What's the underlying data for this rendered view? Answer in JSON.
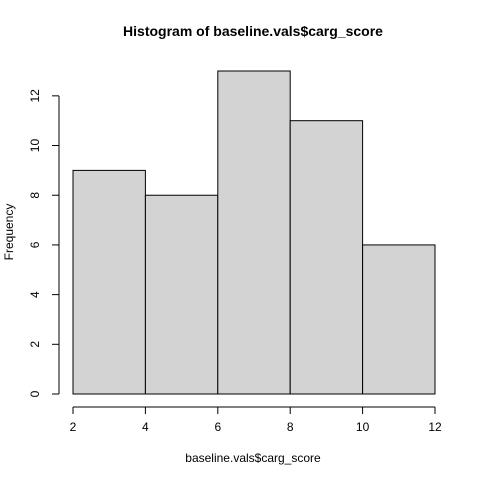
{
  "chart_data": {
    "type": "bar",
    "title": "Histogram of baseline.vals$carg_score",
    "xlabel": "baseline.vals$carg_score",
    "ylabel": "Frequency",
    "bins": [
      {
        "x0": 2,
        "x1": 4,
        "count": 9
      },
      {
        "x0": 4,
        "x1": 6,
        "count": 8
      },
      {
        "x0": 6,
        "x1": 8,
        "count": 13
      },
      {
        "x0": 8,
        "x1": 10,
        "count": 11
      },
      {
        "x0": 10,
        "x1": 12,
        "count": 6
      }
    ],
    "xlim": [
      2,
      12
    ],
    "ylim": [
      0,
      13
    ],
    "x_ticks": [
      2,
      4,
      6,
      8,
      10,
      12
    ],
    "y_ticks": [
      0,
      2,
      4,
      6,
      8,
      10,
      12
    ],
    "grid": false,
    "bar_fill": "#d3d3d3",
    "bar_stroke": "#000000"
  }
}
